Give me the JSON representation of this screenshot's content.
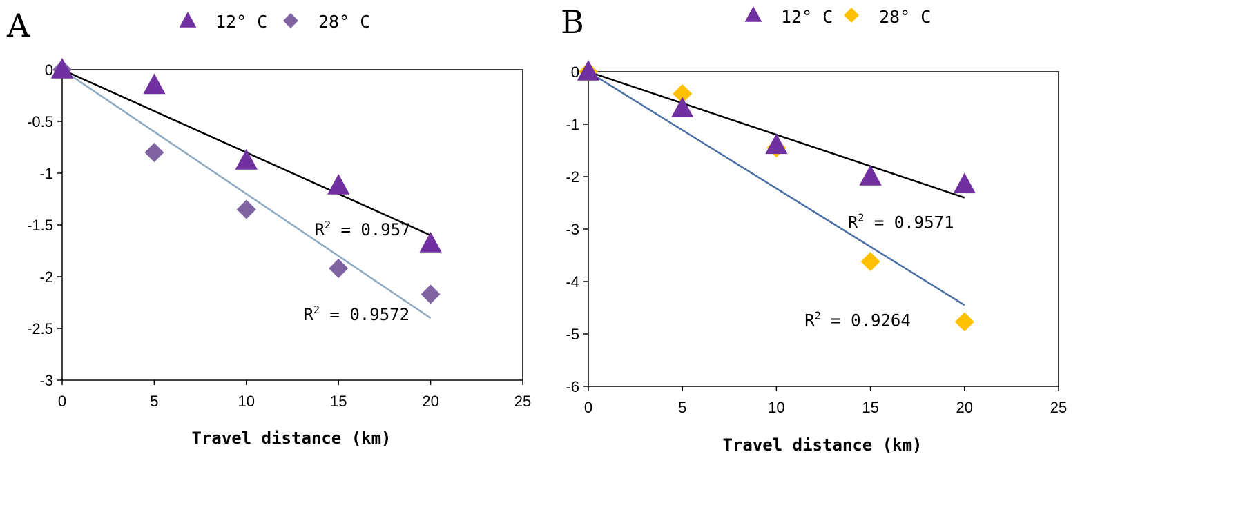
{
  "chart_data": [
    {
      "type": "scatter",
      "panel": "A",
      "xlabel": "Travel distance (km)",
      "ylabel": "",
      "xlim": [
        0,
        25
      ],
      "ylim": [
        -3,
        0
      ],
      "xticks": [
        0,
        5,
        10,
        15,
        20,
        25
      ],
      "yticks": [
        0,
        -0.5,
        -1,
        -1.5,
        -2,
        -2.5,
        -3
      ],
      "ytick_labels": [
        "0",
        "-0.5",
        "-1",
        "-1.5",
        "-2",
        "-2.5",
        "-3"
      ],
      "grid": false,
      "legend_position": "top",
      "series": [
        {
          "name": "12° C",
          "marker": "triangle",
          "color": "#7030A0",
          "x": [
            0,
            5,
            10,
            15,
            20
          ],
          "y": [
            0,
            -0.15,
            -0.88,
            -1.12,
            -1.68
          ],
          "trendline": {
            "x": [
              0,
              20
            ],
            "y": [
              0,
              -1.6
            ],
            "color": "#000000"
          },
          "r2_text": "0.957",
          "r2_anchor": [
            13.7,
            -1.6
          ]
        },
        {
          "name": "28° C",
          "marker": "diamond",
          "color": "#8064A2",
          "x": [
            0,
            5,
            10,
            15,
            20
          ],
          "y": [
            0,
            -0.8,
            -1.35,
            -1.92,
            -2.17
          ],
          "trendline": {
            "x": [
              0,
              20
            ],
            "y": [
              0,
              -2.4
            ],
            "color": "#8EA9C1"
          },
          "r2_text": "0.9572",
          "r2_anchor": [
            13.1,
            -2.42
          ]
        }
      ]
    },
    {
      "type": "scatter",
      "panel": "B",
      "xlabel": "Travel distance (km)",
      "ylabel": "",
      "xlim": [
        0,
        25
      ],
      "ylim": [
        -6,
        0
      ],
      "xticks": [
        0,
        5,
        10,
        15,
        20,
        25
      ],
      "yticks": [
        0,
        -1,
        -2,
        -3,
        -4,
        -5,
        -6
      ],
      "ytick_labels": [
        "0",
        "-1",
        "-2",
        "-3",
        "-4",
        "-5",
        "-6"
      ],
      "grid": false,
      "legend_position": "top",
      "series": [
        {
          "name": "12° C",
          "marker": "triangle",
          "color": "#7030A0",
          "x": [
            0,
            5,
            10,
            15,
            20
          ],
          "y": [
            0,
            -0.7,
            -1.4,
            -2.0,
            -2.15
          ],
          "trendline": {
            "x": [
              0,
              20
            ],
            "y": [
              0,
              -2.4
            ],
            "color": "#000000"
          },
          "r2_text": "0.9571",
          "r2_anchor": [
            13.8,
            -2.98
          ]
        },
        {
          "name": "28° C",
          "marker": "diamond",
          "color": "#FFC000",
          "x": [
            0,
            5,
            10,
            15,
            20
          ],
          "y": [
            0,
            -0.42,
            -1.45,
            -3.62,
            -4.77
          ],
          "trendline": {
            "x": [
              0,
              20
            ],
            "y": [
              0,
              -4.45
            ],
            "color": "#4A6FA5"
          },
          "r2_text": "0.9264",
          "r2_anchor": [
            11.5,
            -4.85
          ]
        }
      ]
    }
  ]
}
